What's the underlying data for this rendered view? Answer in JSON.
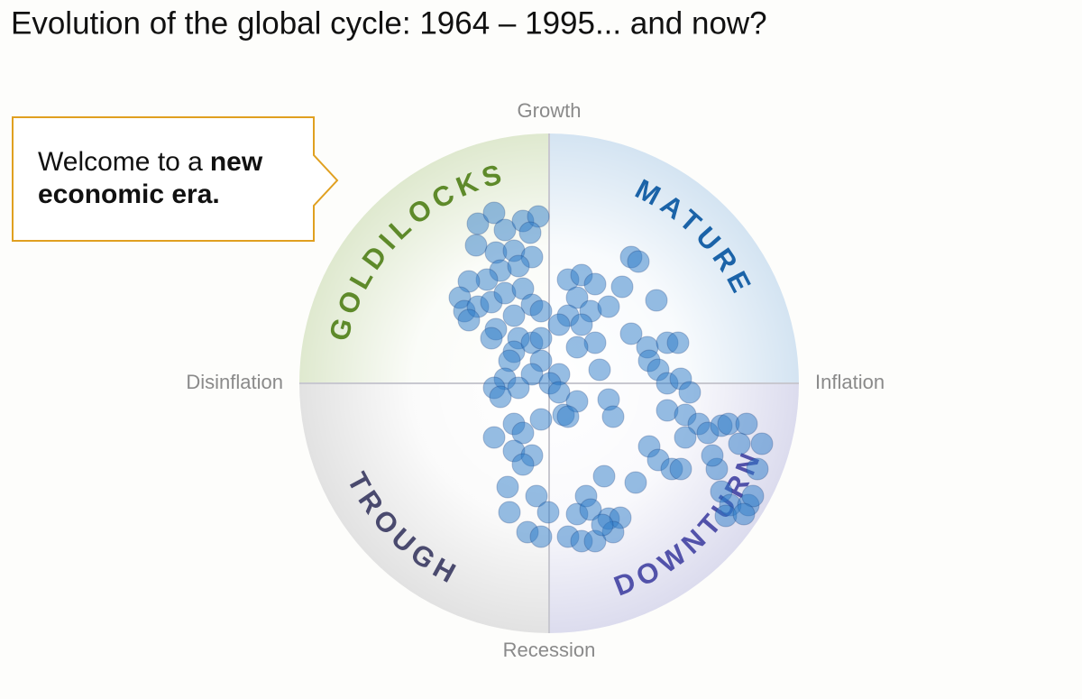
{
  "chart_data": {
    "type": "scatter",
    "title": "Evolution of the global cycle: 1964 – 1995... and now?",
    "callout": {
      "text": "Welcome to a",
      "bold": "new economic era."
    },
    "axis_labels": {
      "top": "Growth",
      "bottom": "Recession",
      "left": "Disinflation",
      "right": "Inflation"
    },
    "quadrants": [
      {
        "name": "GOLDILOCKS",
        "color": "#5e8a2a",
        "fill": "#dfe9cf"
      },
      {
        "name": "MATURE",
        "color": "#1b63a8",
        "fill": "#d4e4f2"
      },
      {
        "name": "TROUGH",
        "color": "#4a4a6e",
        "fill": "#e2e2e2"
      },
      {
        "name": "DOWNTURN",
        "color": "#5252aa",
        "fill": "#dcdcee"
      }
    ],
    "color": "#2d7bc8",
    "xlim": [
      -277,
      277
    ],
    "ylim": [
      -277,
      277
    ],
    "x": [
      -79,
      -61,
      -49,
      -29,
      -12,
      -21,
      -81,
      -59,
      -39,
      -19,
      -54,
      -34,
      -69,
      -89,
      -99,
      -94,
      -79,
      -64,
      -49,
      -29,
      -19,
      -9,
      -39,
      -59,
      -34,
      -39,
      -44,
      -19,
      -9,
      -64,
      -89,
      -9,
      -19,
      11,
      -49,
      -61,
      -34,
      -54,
      1,
      11,
      16,
      -9,
      -39,
      -29,
      -61,
      -39,
      -19,
      -29,
      -46,
      -14,
      -44,
      -1,
      -24,
      -9,
      21,
      36,
      51,
      31,
      41,
      61,
      46,
      66,
      79,
      71,
      59,
      21,
      36,
      51,
      31,
      46,
      66,
      81,
      91,
      99,
      119,
      21,
      36,
      51,
      31,
      11,
      56,
      66,
      31,
      71,
      21,
      91,
      109,
      131,
      143,
      111,
      121,
      131,
      146,
      156,
      131,
      151,
      166,
      176,
      191,
      199,
      219,
      211,
      236,
      231,
      186,
      181,
      151,
      111,
      121,
      136,
      146,
      96,
      191,
      201,
      221,
      226,
      196,
      216
    ],
    "values": [
      177,
      189,
      170,
      180,
      185,
      167,
      153,
      145,
      147,
      140,
      125,
      130,
      115,
      113,
      95,
      80,
      85,
      90,
      100,
      105,
      87,
      80,
      75,
      60,
      50,
      35,
      25,
      45,
      50,
      50,
      70,
      25,
      10,
      10,
      5,
      -5,
      -5,
      -15,
      0,
      -10,
      -35,
      -40,
      -45,
      -55,
      -60,
      -75,
      -80,
      -90,
      -115,
      -125,
      -143,
      -143,
      -165,
      -170,
      -170,
      -175,
      -175,
      -145,
      -125,
      -103,
      -140,
      -150,
      -149,
      -165,
      -157,
      115,
      120,
      110,
      95,
      80,
      85,
      107,
      140,
      135,
      92,
      75,
      65,
      45,
      40,
      65,
      15,
      -18,
      -20,
      -37,
      -37,
      55,
      40,
      45,
      45,
      25,
      15,
      0,
      5,
      -10,
      -30,
      -35,
      -45,
      -55,
      -47,
      -45,
      -45,
      -67,
      -67,
      -95,
      -95,
      -80,
      -60,
      -70,
      -85,
      -95,
      -95,
      -110,
      -120,
      -135,
      -135,
      -125,
      -147,
      -145
    ]
  }
}
